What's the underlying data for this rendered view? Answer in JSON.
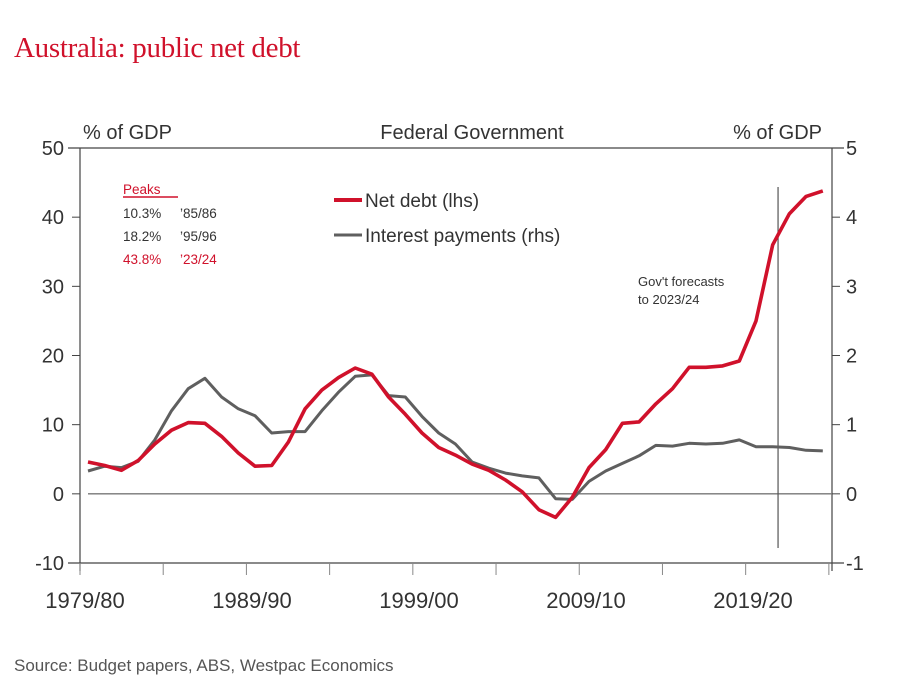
{
  "title": "Australia: public net debt",
  "source": "Source: Budget papers, ABS, Westpac Economics",
  "colors": {
    "net_debt": "#d0112b",
    "interest": "#5f5f5f",
    "axis": "#444444",
    "title": "#d0112b"
  },
  "chart_data": {
    "type": "line",
    "title": "Federal Government",
    "ylabel_left": "% of GDP",
    "ylabel_right": "% of GDP",
    "ylim_left": [
      -10,
      50
    ],
    "ylim_right": [
      -1,
      5
    ],
    "yticks_left": [
      "50",
      "40",
      "30",
      "20",
      "10",
      "0",
      "-10"
    ],
    "yticks_right": [
      "5",
      "4",
      "3",
      "2",
      "1",
      "0",
      "-1"
    ],
    "xticks": [
      "1979/80",
      "1989/90",
      "1999/00",
      "2009/10",
      "2019/20"
    ],
    "x_start_year": 1979,
    "x_end_year": 2024,
    "grid": false,
    "legend": {
      "position": "top-center",
      "entries": [
        "Net debt (lhs)",
        "Interest payments (rhs)"
      ]
    },
    "peaks": {
      "heading": "Peaks",
      "rows": [
        {
          "value": "10.3%",
          "year": "’85/86",
          "highlight": false
        },
        {
          "value": "18.2%",
          "year": "’95/96",
          "highlight": false
        },
        {
          "value": "43.8%",
          "year": "’23/24",
          "highlight": true
        }
      ]
    },
    "annotation": {
      "text_line1": "Gov't forecasts",
      "text_line2": "to 2023/24",
      "x_year": 2020.5
    },
    "series": [
      {
        "name": "Net debt (lhs)",
        "axis": "left",
        "x": [
          1979,
          1980,
          1981,
          1982,
          1983,
          1984,
          1985,
          1986,
          1987,
          1988,
          1989,
          1990,
          1991,
          1992,
          1993,
          1994,
          1995,
          1996,
          1997,
          1998,
          1999,
          2000,
          2001,
          2002,
          2003,
          2004,
          2005,
          2006,
          2007,
          2008,
          2009,
          2010,
          2011,
          2012,
          2013,
          2014,
          2015,
          2016,
          2017,
          2018,
          2019,
          2020,
          2021,
          2022,
          2023
        ],
        "values": [
          4.6,
          4.1,
          3.4,
          4.8,
          7.2,
          9.2,
          10.3,
          10.2,
          8.3,
          5.9,
          4.0,
          4.1,
          7.5,
          12.3,
          15.0,
          16.8,
          18.2,
          17.3,
          14.0,
          11.5,
          8.8,
          6.7,
          5.6,
          4.3,
          3.4,
          2.0,
          0.3,
          -2.3,
          -3.4,
          -0.5,
          3.8,
          6.4,
          10.2,
          10.4,
          13.0,
          15.2,
          18.3,
          18.3,
          18.5,
          19.2,
          25.0,
          36.0,
          40.5,
          43.0,
          43.8
        ]
      },
      {
        "name": "Interest payments (rhs)",
        "axis": "right",
        "x": [
          1979,
          1980,
          1981,
          1982,
          1983,
          1984,
          1985,
          1986,
          1987,
          1988,
          1989,
          1990,
          1991,
          1992,
          1993,
          1994,
          1995,
          1996,
          1997,
          1998,
          1999,
          2000,
          2001,
          2002,
          2003,
          2004,
          2005,
          2006,
          2007,
          2008,
          2009,
          2010,
          2011,
          2012,
          2013,
          2014,
          2015,
          2016,
          2017,
          2018,
          2019,
          2020,
          2021,
          2022,
          2023
        ],
        "values": [
          0.33,
          0.4,
          0.38,
          0.47,
          0.78,
          1.2,
          1.52,
          1.67,
          1.4,
          1.23,
          1.13,
          0.88,
          0.9,
          0.9,
          1.2,
          1.47,
          1.7,
          1.72,
          1.42,
          1.4,
          1.12,
          0.88,
          0.72,
          0.46,
          0.37,
          0.3,
          0.26,
          0.23,
          -0.07,
          -0.08,
          0.18,
          0.33,
          0.44,
          0.55,
          0.7,
          0.69,
          0.73,
          0.72,
          0.73,
          0.78,
          0.68,
          0.68,
          0.67,
          0.63,
          0.62
        ]
      }
    ]
  }
}
